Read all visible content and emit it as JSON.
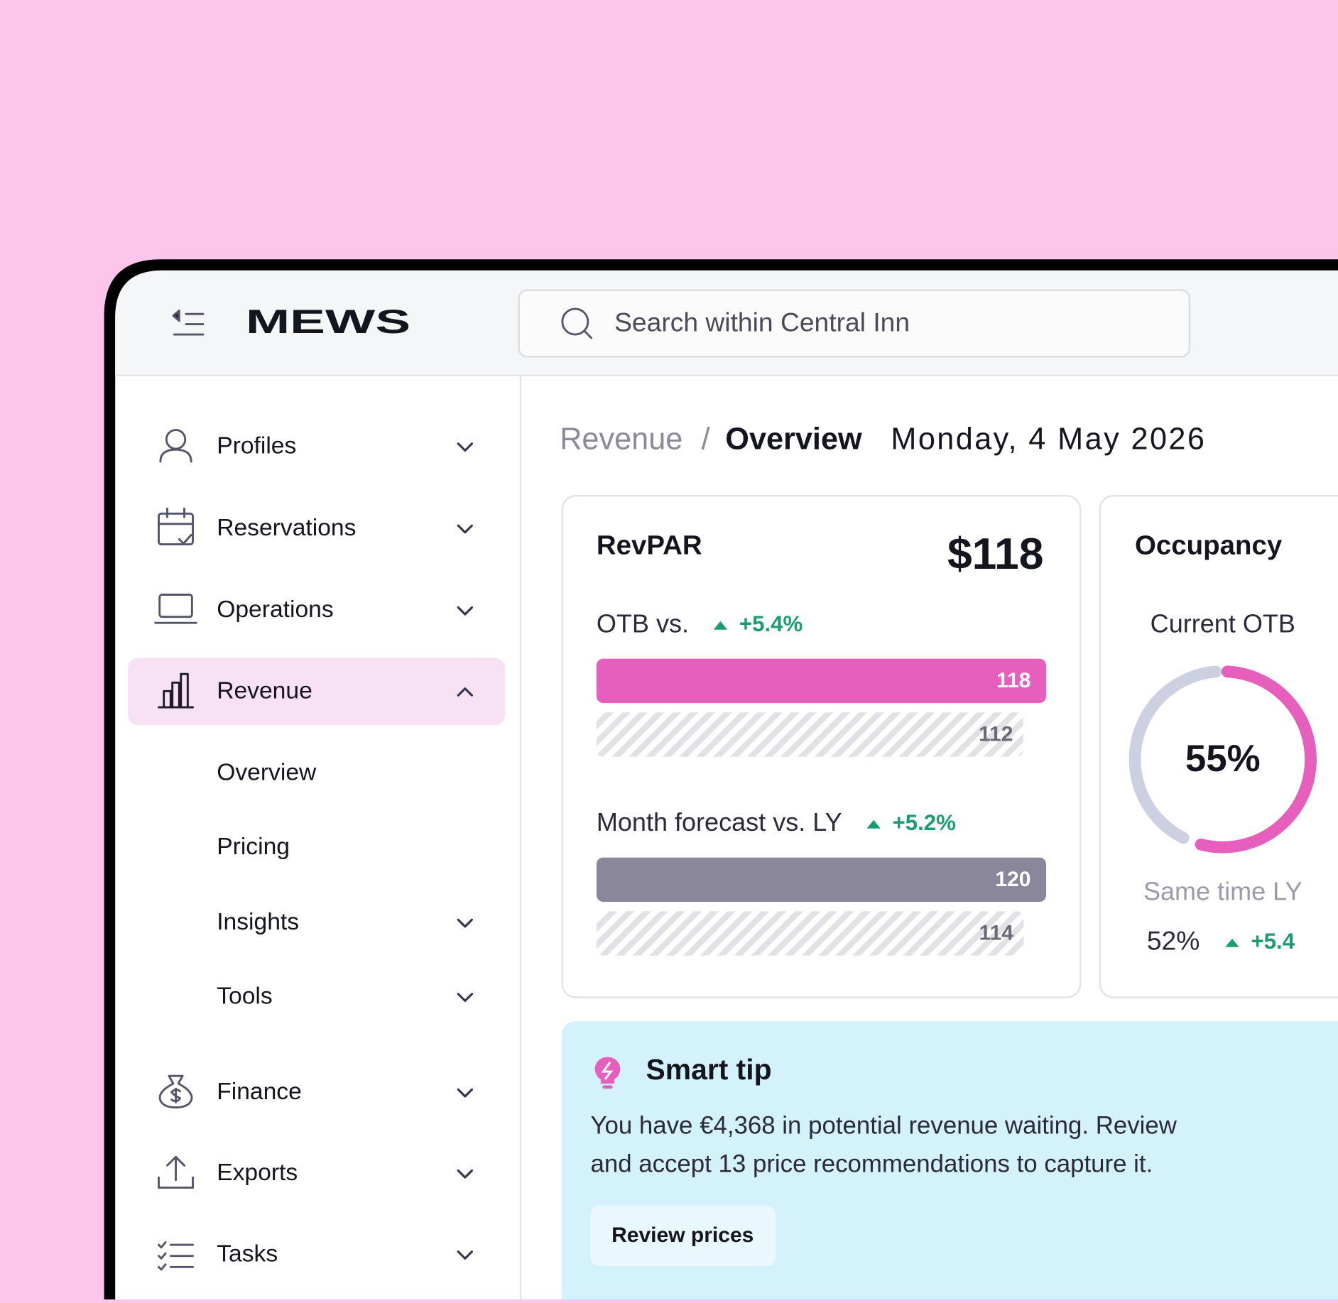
{
  "header": {
    "logo": "MEWS",
    "search_placeholder": "Search within Central Inn"
  },
  "sidebar": {
    "items": [
      "Profiles",
      "Reservations",
      "Operations",
      "Revenue",
      "Overview",
      "Pricing",
      "Insights",
      "Tools",
      "Finance",
      "Exports",
      "Tasks"
    ]
  },
  "breadcrumb": {
    "parent": "Revenue",
    "separator": "/",
    "current": "Overview",
    "date": "Monday, 4 May 2026"
  },
  "revpar": {
    "title": "RevPAR",
    "value": "$118",
    "rows": [
      {
        "label": "OTB vs.",
        "change": "+5.4%",
        "current": 118,
        "previous": 112
      },
      {
        "label": "Month forecast vs. LY",
        "change": "+5.2%",
        "current": 120,
        "previous": 114
      }
    ]
  },
  "occupancy": {
    "title": "Occupancy",
    "current_label": "Current OTB",
    "current": {
      "value": 55,
      "label": "55%"
    },
    "ly_label": "Same time LY",
    "ly": "52%",
    "ly_change": "+5.4"
  },
  "smart_tip": {
    "title": "Smart tip",
    "lines": [
      "You have €4,368 in potential revenue waiting. Review",
      "and accept 13 price recommendations to capture it."
    ],
    "button": "Review prices"
  }
}
